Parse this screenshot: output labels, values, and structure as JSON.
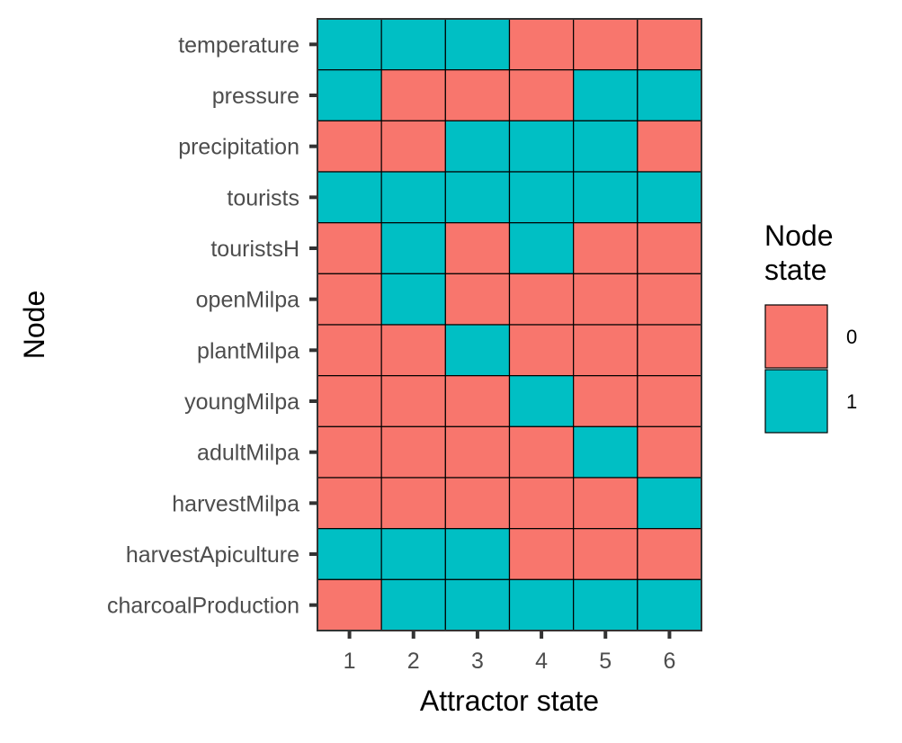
{
  "chart_data": {
    "type": "heatmap",
    "xlabel": "Attractor state",
    "ylabel": "Node",
    "x": [
      "1",
      "2",
      "3",
      "4",
      "5",
      "6"
    ],
    "y": [
      "temperature",
      "pressure",
      "precipitation",
      "tourists",
      "touristsH",
      "openMilpa",
      "plantMilpa",
      "youngMilpa",
      "adultMilpa",
      "harvestMilpa",
      "harvestApiculture",
      "charcoalProduction"
    ],
    "values": [
      [
        1,
        1,
        1,
        0,
        0,
        0
      ],
      [
        1,
        0,
        0,
        0,
        1,
        1
      ],
      [
        0,
        0,
        1,
        1,
        1,
        0
      ],
      [
        1,
        1,
        1,
        1,
        1,
        1
      ],
      [
        0,
        1,
        0,
        1,
        0,
        0
      ],
      [
        0,
        1,
        0,
        0,
        0,
        0
      ],
      [
        0,
        0,
        1,
        0,
        0,
        0
      ],
      [
        0,
        0,
        0,
        1,
        0,
        0
      ],
      [
        0,
        0,
        0,
        0,
        1,
        0
      ],
      [
        0,
        0,
        0,
        0,
        0,
        1
      ],
      [
        1,
        1,
        1,
        0,
        0,
        0
      ],
      [
        0,
        1,
        1,
        1,
        1,
        1
      ]
    ],
    "legend": {
      "title_lines": [
        "Node",
        "state"
      ],
      "entries": [
        {
          "label": "0",
          "color": "#F8766D"
        },
        {
          "label": "1",
          "color": "#00BFC4"
        }
      ],
      "position": "right"
    },
    "colors": {
      "0": "#F8766D",
      "1": "#00BFC4"
    },
    "grid": false
  }
}
